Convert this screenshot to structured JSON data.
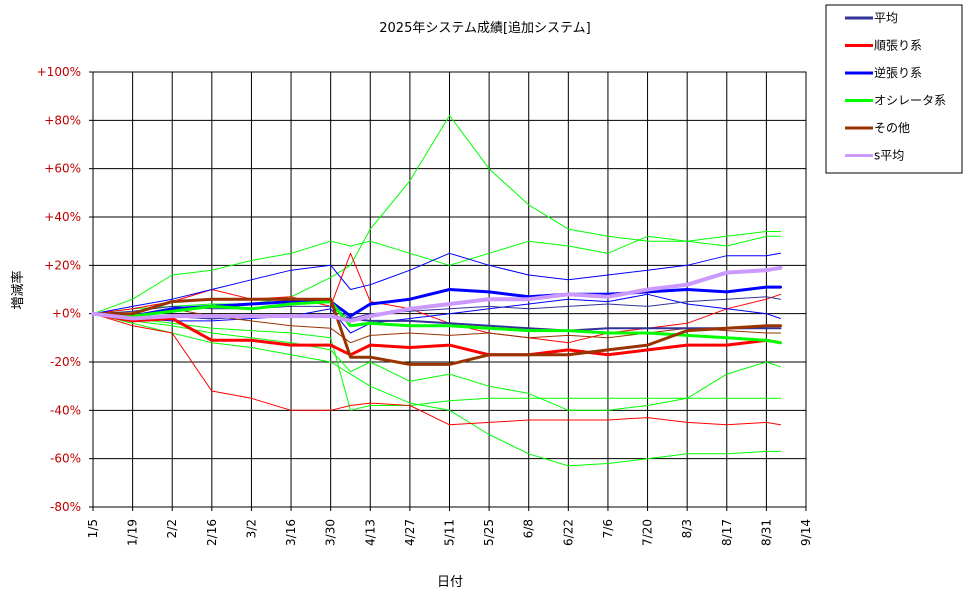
{
  "chart_data": {
    "type": "line",
    "title": "2025年システム成績[追加システム]",
    "xlabel": "日付",
    "ylabel": "増減率",
    "x_ticks": [
      "1/5",
      "1/19",
      "2/2",
      "2/16",
      "3/2",
      "3/16",
      "3/30",
      "4/13",
      "4/27",
      "5/11",
      "5/25",
      "6/8",
      "6/22",
      "7/6",
      "7/20",
      "8/3",
      "8/17",
      "8/31",
      "9/14"
    ],
    "y_ticks": [
      "+100%",
      "+80%",
      "+60%",
      "+40%",
      "+20%",
      "+0%",
      "-20%",
      "-40%",
      "-60%",
      "-80%"
    ],
    "ylim": [
      -80,
      100
    ],
    "grid": true,
    "legend_position": "top-right",
    "colors": {
      "平均": "#333399",
      "順張り系": "#ff0000",
      "逆張り系": "#0000ff",
      "オシレータ系": "#00ff00",
      "その他": "#993300",
      "s平均": "#cc99ff"
    },
    "legend": [
      {
        "name": "平均",
        "color": "#333399"
      },
      {
        "name": "順張り系",
        "color": "#ff0000"
      },
      {
        "name": "逆張り系",
        "color": "#0000ff"
      },
      {
        "name": "オシレータ系",
        "color": "#00ff00"
      },
      {
        "name": "その他",
        "color": "#993300"
      },
      {
        "name": "s平均",
        "color": "#cc99ff"
      }
    ],
    "x": [
      "1/5",
      "1/19",
      "2/2",
      "2/16",
      "3/2",
      "3/16",
      "3/30",
      "4/6",
      "4/13",
      "4/27",
      "5/11",
      "5/25",
      "6/8",
      "6/22",
      "7/6",
      "7/20",
      "8/3",
      "8/17",
      "8/31",
      "9/5"
    ],
    "series": [
      {
        "name": "平均",
        "color": "#333399",
        "width": 2,
        "values": [
          0,
          -2,
          -1,
          -2,
          -1,
          -1,
          -1,
          -2,
          -3,
          -3,
          -4,
          -5,
          -6,
          -7,
          -6,
          -6,
          -6,
          -6,
          -6,
          -6
        ]
      },
      {
        "name": "順張り系",
        "color": "#ff0000",
        "width": 3,
        "values": [
          0,
          -3,
          -2,
          -11,
          -11,
          -13,
          -13,
          -17,
          -13,
          -14,
          -13,
          -17,
          -17,
          -15,
          -17,
          -15,
          -13,
          -13,
          -11,
          -12
        ]
      },
      {
        "name": "逆張り系",
        "color": "#0000ff",
        "width": 3,
        "values": [
          0,
          -1,
          2,
          3,
          4,
          5,
          5,
          -1,
          4,
          6,
          10,
          9,
          7,
          8,
          8,
          9,
          10,
          9,
          11,
          11
        ]
      },
      {
        "name": "オシレータ系",
        "color": "#00ff00",
        "width": 3,
        "values": [
          0,
          -1,
          1,
          3,
          2,
          4,
          5,
          -5,
          -4,
          -5,
          -5,
          -6,
          -7,
          -7,
          -8,
          -8,
          -9,
          -10,
          -11,
          -12
        ]
      },
      {
        "name": "その他",
        "color": "#993300",
        "width": 3,
        "values": [
          0,
          0,
          5,
          6,
          6,
          6,
          6,
          -18,
          -18,
          -21,
          -21,
          -17,
          -17,
          -17,
          -15,
          -13,
          -7,
          -6,
          -5,
          -5
        ]
      },
      {
        "name": "s平均",
        "color": "#cc99ff",
        "width": 4,
        "values": [
          0,
          -2,
          -1,
          -1,
          -1,
          -1,
          -1,
          -3,
          -1,
          2,
          4,
          6,
          6,
          8,
          7,
          10,
          12,
          17,
          18,
          19
        ]
      },
      {
        "color": "#00ff00",
        "width": 1,
        "values": [
          0,
          2,
          3,
          4,
          4,
          7,
          15,
          20,
          35,
          55,
          82,
          60,
          45,
          35,
          32,
          30,
          30,
          32,
          34,
          34
        ]
      },
      {
        "color": "#00ff00",
        "width": 1,
        "values": [
          0,
          6,
          16,
          18,
          22,
          25,
          30,
          28,
          30,
          25,
          20,
          25,
          30,
          28,
          25,
          32,
          30,
          28,
          32,
          32
        ]
      },
      {
        "color": "#00ff00",
        "width": 1,
        "values": [
          0,
          -4,
          -8,
          -12,
          -14,
          -17,
          -20,
          -25,
          -30,
          -37,
          -40,
          -50,
          -58,
          -63,
          -62,
          -60,
          -58,
          -58,
          -57,
          -57
        ]
      },
      {
        "color": "#00ff00",
        "width": 1,
        "values": [
          0,
          -2,
          -4,
          -6,
          -7,
          -8,
          -10,
          -40,
          -38,
          -38,
          -36,
          -35,
          -35,
          -35,
          -35,
          -35,
          -35,
          -35,
          -35,
          -35
        ]
      },
      {
        "color": "#00ff00",
        "width": 1,
        "values": [
          0,
          -3,
          -5,
          -8,
          -10,
          -12,
          -15,
          -24,
          -20,
          -28,
          -25,
          -30,
          -33,
          -40,
          -40,
          -38,
          -35,
          -25,
          -20,
          -22
        ]
      },
      {
        "color": "#ff0000",
        "width": 1,
        "values": [
          0,
          -5,
          -8,
          -32,
          -35,
          -40,
          -40,
          -38,
          -37,
          -38,
          -46,
          -45,
          -44,
          -44,
          -44,
          -43,
          -45,
          -46,
          -45,
          -46
        ]
      },
      {
        "color": "#ff0000",
        "width": 1,
        "values": [
          0,
          2,
          5,
          10,
          6,
          7,
          3,
          25,
          5,
          2,
          -4,
          -8,
          -10,
          -12,
          -8,
          -6,
          -4,
          2,
          6,
          8
        ]
      },
      {
        "color": "#0000ff",
        "width": 1,
        "values": [
          0,
          3,
          6,
          10,
          14,
          18,
          20,
          10,
          12,
          18,
          25,
          20,
          16,
          14,
          16,
          18,
          20,
          24,
          24,
          25
        ]
      },
      {
        "color": "#0000ff",
        "width": 1,
        "values": [
          0,
          -2,
          -3,
          -3,
          -2,
          -1,
          2,
          -8,
          -4,
          -2,
          0,
          2,
          4,
          6,
          5,
          8,
          4,
          2,
          0,
          -2
        ]
      },
      {
        "color": "#993300",
        "width": 1,
        "values": [
          0,
          -1,
          2,
          -1,
          -3,
          -5,
          -6,
          -12,
          -9,
          -8,
          -9,
          -8,
          -10,
          -9,
          -10,
          -8,
          -6,
          -7,
          -8,
          -8
        ]
      },
      {
        "color": "#333399",
        "width": 1,
        "values": [
          0,
          1,
          3,
          2,
          2,
          3,
          3,
          -2,
          0,
          1,
          2,
          3,
          2,
          3,
          4,
          3,
          5,
          6,
          7,
          6
        ]
      }
    ]
  }
}
